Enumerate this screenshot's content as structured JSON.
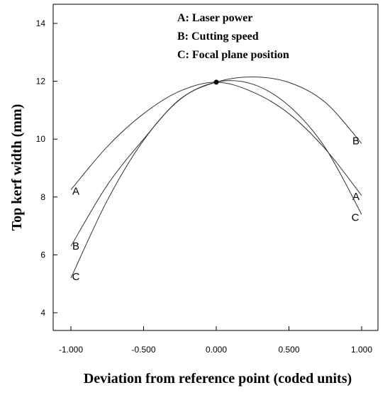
{
  "chart_data": {
    "type": "line",
    "title": "",
    "xlabel": "Deviation from reference point (coded units)",
    "ylabel": "Top kerf width (mm)",
    "xlim": [
      -1.0,
      1.0
    ],
    "ylim": [
      4,
      14
    ],
    "xticks": [
      -1.0,
      -0.5,
      0.0,
      0.5,
      1.0
    ],
    "xtick_labels": [
      "-1.000",
      "-0.500",
      "0.000",
      "0.500",
      "1.000"
    ],
    "yticks": [
      4,
      6,
      8,
      10,
      12,
      14
    ],
    "ytick_labels": [
      "4",
      "6",
      "8",
      "10",
      "12",
      "14"
    ],
    "reference_point": {
      "x": 0.0,
      "y": 11.97
    },
    "legend": [
      "A: Laser power",
      "B: Cutting speed",
      "C: Focal plane position"
    ],
    "series": [
      {
        "name": "A",
        "x": [
          -1.0,
          -0.75,
          -0.5,
          -0.25,
          0.0,
          0.25,
          0.5,
          0.75,
          1.0
        ],
        "values": [
          8.25,
          9.74,
          10.88,
          11.66,
          11.97,
          11.63,
          10.88,
          9.66,
          8.05
        ]
      },
      {
        "name": "B",
        "x": [
          -1.0,
          -0.75,
          -0.5,
          -0.25,
          0.0,
          0.25,
          0.5,
          0.75,
          1.0
        ],
        "values": [
          6.3,
          8.41,
          10.0,
          11.38,
          11.97,
          12.15,
          11.96,
          11.27,
          9.85
        ]
      },
      {
        "name": "C",
        "x": [
          -1.0,
          -0.75,
          -0.5,
          -0.25,
          0.0,
          0.25,
          0.5,
          0.75,
          1.0
        ],
        "values": [
          5.2,
          7.88,
          9.96,
          11.37,
          11.97,
          11.9,
          11.15,
          9.7,
          7.4
        ]
      }
    ]
  }
}
